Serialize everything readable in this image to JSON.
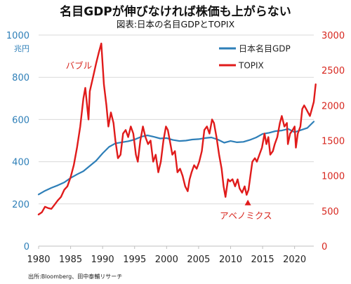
{
  "chart_data": {
    "type": "line",
    "title": "名目GDPが伸びなければ株価も上がらない",
    "subtitle": "図表:日本の名目GDPとTOPIX",
    "y_left_unit": "兆円",
    "xlim": [
      1980,
      2023
    ],
    "ylim_left": [
      0,
      1000
    ],
    "ylim_right": [
      0,
      3000
    ],
    "x_ticks": [
      "1980",
      "1985",
      "1990",
      "1995",
      "2000",
      "2005",
      "2010",
      "2015",
      "2020"
    ],
    "y_left_ticks": [
      "0",
      "200",
      "400",
      "600",
      "800",
      "1000"
    ],
    "y_right_ticks": [
      "0",
      "500",
      "1000",
      "1500",
      "2000",
      "2500",
      "3000"
    ],
    "series": [
      {
        "name": "日本名目GDP",
        "color": "#2e7fb8",
        "axis": "left",
        "points": [
          [
            1980,
            245
          ],
          [
            1981,
            262
          ],
          [
            1982,
            276
          ],
          [
            1983,
            288
          ],
          [
            1984,
            302
          ],
          [
            1985,
            323
          ],
          [
            1986,
            340
          ],
          [
            1987,
            355
          ],
          [
            1988,
            380
          ],
          [
            1989,
            405
          ],
          [
            1990,
            440
          ],
          [
            1991,
            470
          ],
          [
            1992,
            487
          ],
          [
            1993,
            492
          ],
          [
            1994,
            497
          ],
          [
            1995,
            505
          ],
          [
            1996,
            518
          ],
          [
            1997,
            525
          ],
          [
            1998,
            518
          ],
          [
            1999,
            510
          ],
          [
            2000,
            512
          ],
          [
            2001,
            503
          ],
          [
            2002,
            498
          ],
          [
            2003,
            500
          ],
          [
            2004,
            505
          ],
          [
            2005,
            507
          ],
          [
            2006,
            512
          ],
          [
            2007,
            515
          ],
          [
            2008,
            505
          ],
          [
            2009,
            490
          ],
          [
            2010,
            498
          ],
          [
            2011,
            492
          ],
          [
            2012,
            494
          ],
          [
            2013,
            503
          ],
          [
            2014,
            515
          ],
          [
            2015,
            532
          ],
          [
            2016,
            537
          ],
          [
            2017,
            545
          ],
          [
            2018,
            548
          ],
          [
            2019,
            555
          ],
          [
            2020,
            540
          ],
          [
            2021,
            550
          ],
          [
            2022,
            560
          ],
          [
            2023,
            590
          ]
        ]
      },
      {
        "name": "TOPIX",
        "color": "#e01b1b",
        "axis": "right",
        "points": [
          [
            1980,
            450
          ],
          [
            1980.5,
            480
          ],
          [
            1981,
            560
          ],
          [
            1981.5,
            540
          ],
          [
            1982,
            530
          ],
          [
            1982.5,
            590
          ],
          [
            1983,
            650
          ],
          [
            1983.5,
            700
          ],
          [
            1984,
            800
          ],
          [
            1984.5,
            850
          ],
          [
            1985,
            980
          ],
          [
            1985.5,
            1150
          ],
          [
            1986,
            1400
          ],
          [
            1986.5,
            1700
          ],
          [
            1987,
            2100
          ],
          [
            1987.3,
            2250
          ],
          [
            1987.8,
            1800
          ],
          [
            1988,
            2200
          ],
          [
            1988.5,
            2400
          ],
          [
            1989,
            2600
          ],
          [
            1989.4,
            2750
          ],
          [
            1989.8,
            2880
          ],
          [
            1990.2,
            2300
          ],
          [
            1990.6,
            2000
          ],
          [
            1990.9,
            1700
          ],
          [
            1991.3,
            1900
          ],
          [
            1991.7,
            1750
          ],
          [
            1992,
            1500
          ],
          [
            1992.4,
            1250
          ],
          [
            1992.8,
            1300
          ],
          [
            1993.2,
            1600
          ],
          [
            1993.6,
            1650
          ],
          [
            1994,
            1550
          ],
          [
            1994.4,
            1700
          ],
          [
            1994.8,
            1600
          ],
          [
            1995.2,
            1300
          ],
          [
            1995.5,
            1200
          ],
          [
            1995.9,
            1500
          ],
          [
            1996.3,
            1700
          ],
          [
            1996.7,
            1550
          ],
          [
            1997.1,
            1450
          ],
          [
            1997.5,
            1500
          ],
          [
            1997.9,
            1200
          ],
          [
            1998.3,
            1300
          ],
          [
            1998.7,
            1050
          ],
          [
            1999.1,
            1200
          ],
          [
            1999.5,
            1500
          ],
          [
            1999.9,
            1700
          ],
          [
            2000.2,
            1650
          ],
          [
            2000.6,
            1450
          ],
          [
            2000.9,
            1300
          ],
          [
            2001.3,
            1350
          ],
          [
            2001.7,
            1050
          ],
          [
            2002.1,
            1100
          ],
          [
            2002.5,
            1000
          ],
          [
            2002.9,
            850
          ],
          [
            2003.3,
            780
          ],
          [
            2003.6,
            950
          ],
          [
            2003.9,
            1050
          ],
          [
            2004.3,
            1150
          ],
          [
            2004.7,
            1100
          ],
          [
            2005.1,
            1200
          ],
          [
            2005.5,
            1350
          ],
          [
            2005.9,
            1650
          ],
          [
            2006.3,
            1700
          ],
          [
            2006.7,
            1600
          ],
          [
            2007.1,
            1800
          ],
          [
            2007.4,
            1750
          ],
          [
            2007.8,
            1550
          ],
          [
            2008.2,
            1300
          ],
          [
            2008.6,
            1100
          ],
          [
            2008.9,
            850
          ],
          [
            2009.2,
            700
          ],
          [
            2009.6,
            950
          ],
          [
            2009.9,
            920
          ],
          [
            2010.3,
            950
          ],
          [
            2010.7,
            850
          ],
          [
            2011.1,
            950
          ],
          [
            2011.4,
            820
          ],
          [
            2011.8,
            760
          ],
          [
            2012.2,
            850
          ],
          [
            2012.5,
            730
          ],
          [
            2012.8,
            800
          ],
          [
            2013.1,
            1000
          ],
          [
            2013.4,
            1200
          ],
          [
            2013.8,
            1250
          ],
          [
            2014.1,
            1200
          ],
          [
            2014.5,
            1300
          ],
          [
            2014.9,
            1400
          ],
          [
            2015.3,
            1600
          ],
          [
            2015.6,
            1450
          ],
          [
            2015.9,
            1550
          ],
          [
            2016.2,
            1300
          ],
          [
            2016.6,
            1350
          ],
          [
            2016.9,
            1450
          ],
          [
            2017.3,
            1550
          ],
          [
            2017.7,
            1750
          ],
          [
            2018.0,
            1850
          ],
          [
            2018.4,
            1700
          ],
          [
            2018.8,
            1750
          ],
          [
            2018.95,
            1450
          ],
          [
            2019.3,
            1600
          ],
          [
            2019.7,
            1650
          ],
          [
            2020.0,
            1700
          ],
          [
            2020.2,
            1400
          ],
          [
            2020.5,
            1600
          ],
          [
            2020.9,
            1700
          ],
          [
            2021.2,
            1950
          ],
          [
            2021.5,
            2000
          ],
          [
            2021.8,
            1950
          ],
          [
            2022.1,
            1900
          ],
          [
            2022.4,
            1850
          ],
          [
            2022.7,
            1950
          ],
          [
            2023.0,
            2050
          ],
          [
            2023.3,
            2300
          ]
        ]
      }
    ],
    "annotations": [
      {
        "text": "バブル",
        "x": 1986.3,
        "y_right": 2520
      },
      {
        "text": "アベノミクス",
        "x": 2012.4,
        "y_right": 390,
        "marker_x": 2012.7,
        "marker_y_right": 620,
        "marker": "triangle"
      }
    ],
    "source": "出所:Bloomberg、田中泰輔リサーチ"
  }
}
